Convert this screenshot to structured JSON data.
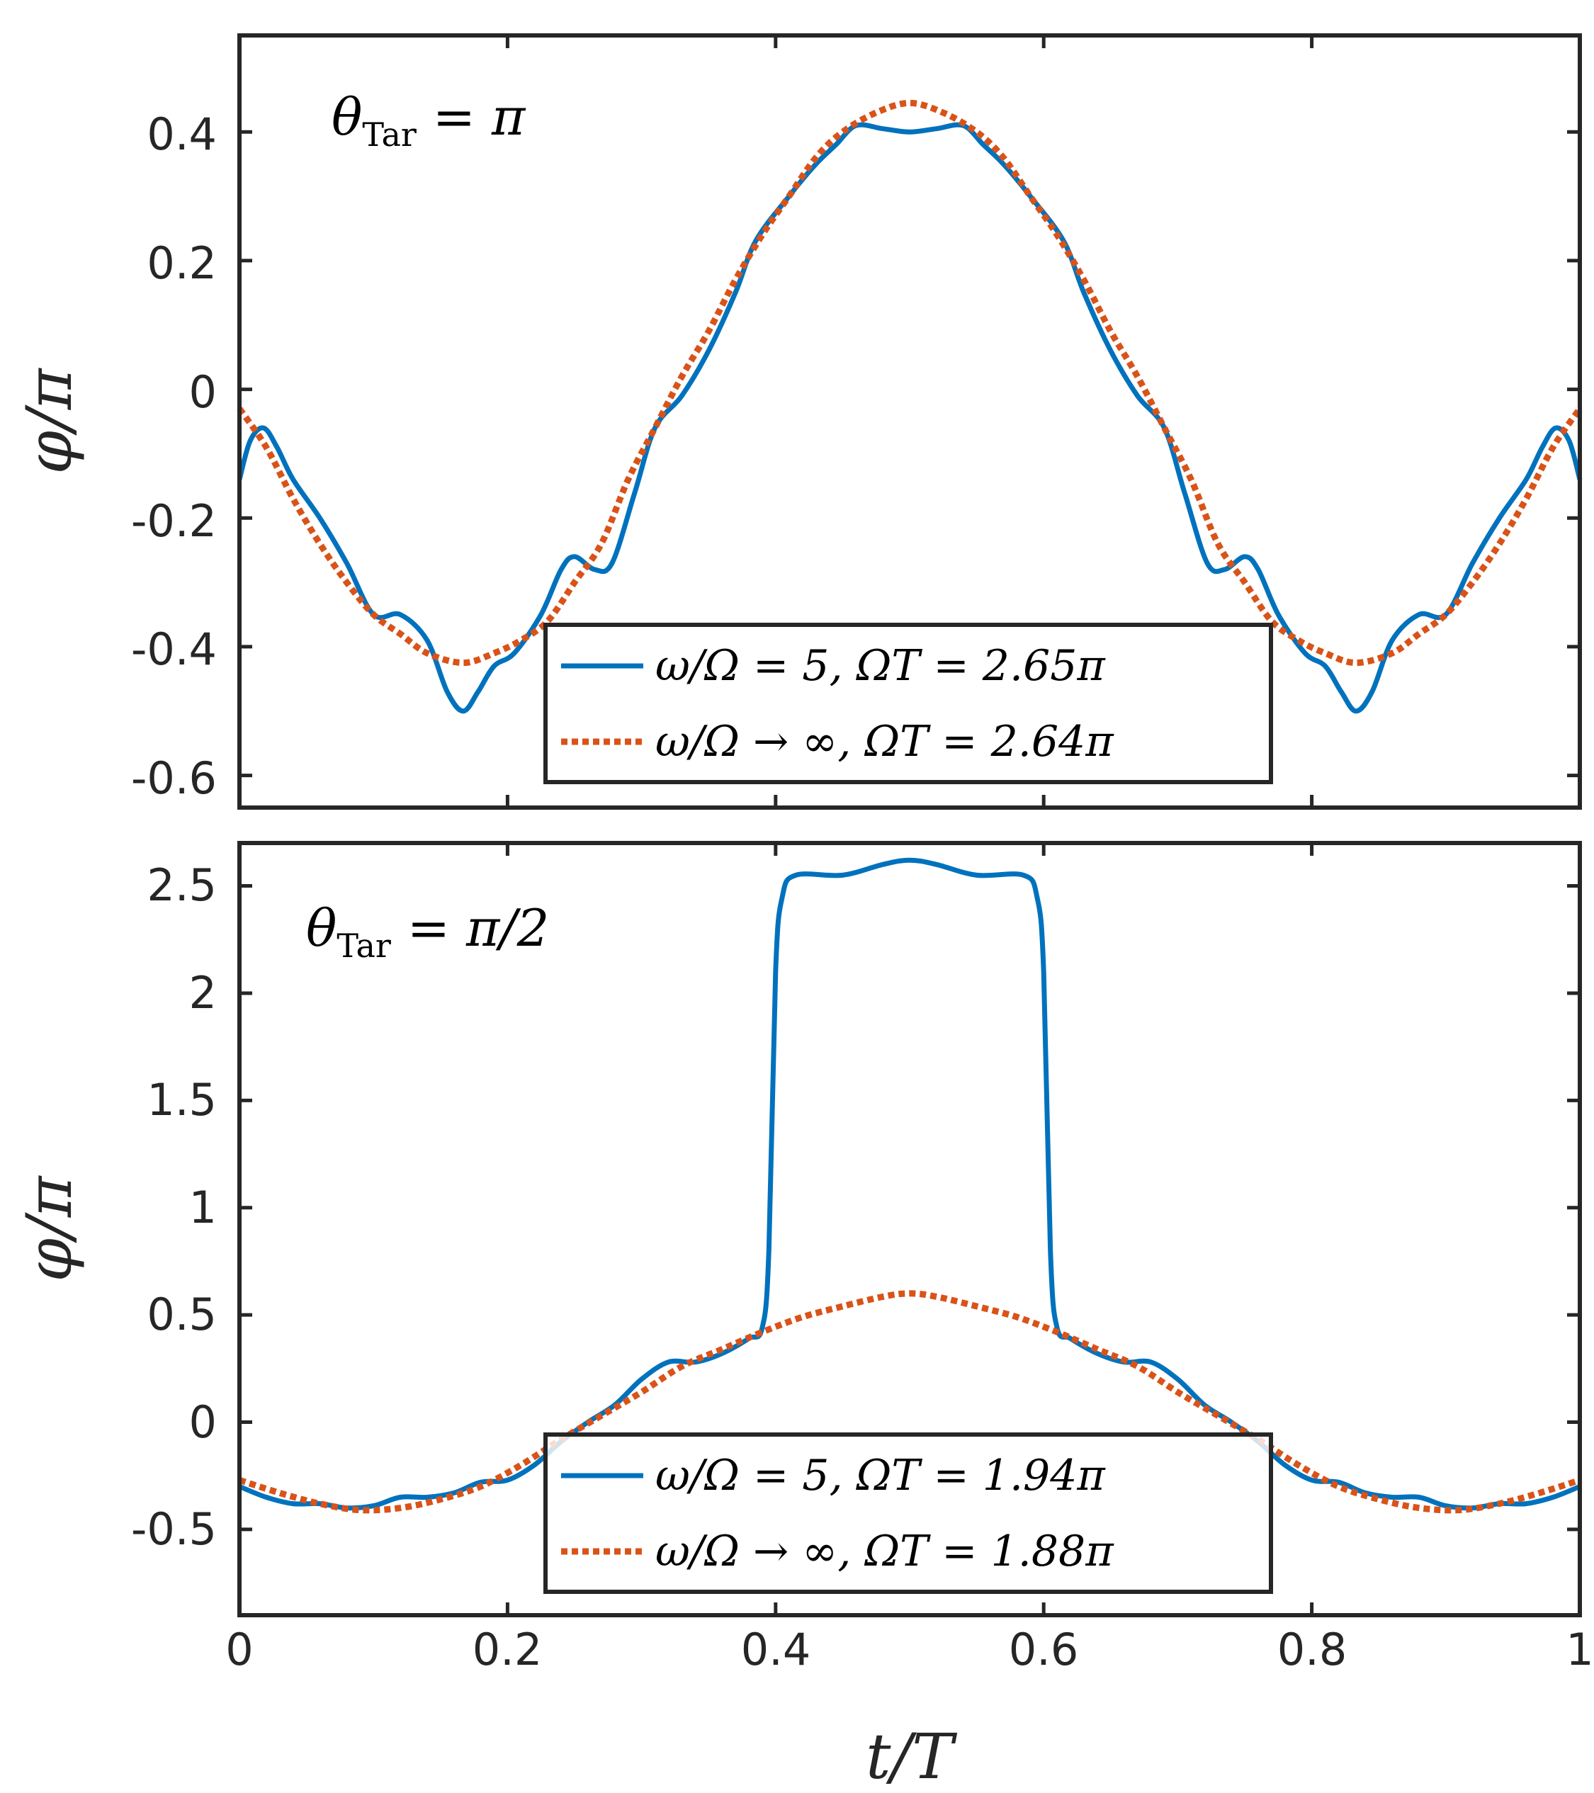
{
  "chart_data": [
    {
      "type": "line",
      "annotation": "θ",
      "annotation_sub": "Tar",
      "annotation_rest": " = π",
      "ylabel": "φ/π",
      "xlabel": "",
      "xlim": [
        0,
        1
      ],
      "ylim": [
        -0.65,
        0.55
      ],
      "yticks": [
        -0.6,
        -0.4,
        -0.2,
        0,
        0.2,
        0.4
      ],
      "ytick_labels": [
        "-0.6",
        "-0.4",
        "-0.2",
        "0",
        "0.2",
        "0.4"
      ],
      "xticks": [
        0,
        0.2,
        0.4,
        0.6,
        0.8,
        1
      ],
      "xtick_labels": [],
      "legend_position": "bottom-center",
      "series": [
        {
          "name": "ω/Ω = 5, ΩT = 2.65π",
          "color": "#0072BD",
          "style": "solid",
          "points": [
            [
              0,
              -0.14
            ],
            [
              0.008,
              -0.08
            ],
            [
              0.018,
              -0.06
            ],
            [
              0.028,
              -0.09
            ],
            [
              0.04,
              -0.14
            ],
            [
              0.06,
              -0.2
            ],
            [
              0.08,
              -0.27
            ],
            [
              0.1,
              -0.35
            ],
            [
              0.12,
              -0.35
            ],
            [
              0.14,
              -0.39
            ],
            [
              0.155,
              -0.47
            ],
            [
              0.167,
              -0.5
            ],
            [
              0.178,
              -0.47
            ],
            [
              0.19,
              -0.43
            ],
            [
              0.205,
              -0.41
            ],
            [
              0.225,
              -0.35
            ],
            [
              0.24,
              -0.28
            ],
            [
              0.25,
              -0.26
            ],
            [
              0.265,
              -0.28
            ],
            [
              0.278,
              -0.27
            ],
            [
              0.295,
              -0.16
            ],
            [
              0.31,
              -0.06
            ],
            [
              0.33,
              -0.01
            ],
            [
              0.35,
              0.06
            ],
            [
              0.37,
              0.15
            ],
            [
              0.385,
              0.23
            ],
            [
              0.41,
              0.3
            ],
            [
              0.43,
              0.35
            ],
            [
              0.445,
              0.38
            ],
            [
              0.46,
              0.41
            ],
            [
              0.48,
              0.405
            ],
            [
              0.5,
              0.4
            ],
            [
              0.52,
              0.405
            ],
            [
              0.54,
              0.41
            ],
            [
              0.555,
              0.38
            ],
            [
              0.57,
              0.35
            ],
            [
              0.59,
              0.3
            ],
            [
              0.615,
              0.23
            ],
            [
              0.63,
              0.15
            ],
            [
              0.65,
              0.06
            ],
            [
              0.67,
              -0.01
            ],
            [
              0.69,
              -0.06
            ],
            [
              0.705,
              -0.16
            ],
            [
              0.722,
              -0.27
            ],
            [
              0.735,
              -0.28
            ],
            [
              0.75,
              -0.26
            ],
            [
              0.76,
              -0.28
            ],
            [
              0.775,
              -0.35
            ],
            [
              0.795,
              -0.41
            ],
            [
              0.81,
              -0.43
            ],
            [
              0.822,
              -0.47
            ],
            [
              0.833,
              -0.5
            ],
            [
              0.845,
              -0.47
            ],
            [
              0.86,
              -0.39
            ],
            [
              0.88,
              -0.35
            ],
            [
              0.9,
              -0.35
            ],
            [
              0.92,
              -0.27
            ],
            [
              0.94,
              -0.2
            ],
            [
              0.96,
              -0.14
            ],
            [
              0.972,
              -0.09
            ],
            [
              0.982,
              -0.06
            ],
            [
              0.992,
              -0.08
            ],
            [
              1,
              -0.14
            ]
          ]
        },
        {
          "name": "ω/Ω → ∞, ΩT = 2.64π",
          "color": "#D95319",
          "style": "dotted",
          "points": [
            [
              0,
              -0.03
            ],
            [
              0.02,
              -0.09
            ],
            [
              0.04,
              -0.17
            ],
            [
              0.06,
              -0.24
            ],
            [
              0.08,
              -0.3
            ],
            [
              0.1,
              -0.35
            ],
            [
              0.12,
              -0.38
            ],
            [
              0.14,
              -0.41
            ],
            [
              0.167,
              -0.425
            ],
            [
              0.19,
              -0.41
            ],
            [
              0.21,
              -0.39
            ],
            [
              0.23,
              -0.36
            ],
            [
              0.25,
              -0.3
            ],
            [
              0.27,
              -0.24
            ],
            [
              0.29,
              -0.14
            ],
            [
              0.31,
              -0.06
            ],
            [
              0.33,
              0.02
            ],
            [
              0.35,
              0.09
            ],
            [
              0.37,
              0.17
            ],
            [
              0.39,
              0.24
            ],
            [
              0.41,
              0.3
            ],
            [
              0.43,
              0.36
            ],
            [
              0.45,
              0.4
            ],
            [
              0.475,
              0.43
            ],
            [
              0.5,
              0.445
            ],
            [
              0.525,
              0.43
            ],
            [
              0.55,
              0.4
            ],
            [
              0.57,
              0.36
            ],
            [
              0.59,
              0.3
            ],
            [
              0.61,
              0.24
            ],
            [
              0.63,
              0.17
            ],
            [
              0.65,
              0.09
            ],
            [
              0.67,
              0.02
            ],
            [
              0.69,
              -0.06
            ],
            [
              0.71,
              -0.14
            ],
            [
              0.73,
              -0.24
            ],
            [
              0.75,
              -0.3
            ],
            [
              0.77,
              -0.36
            ],
            [
              0.79,
              -0.39
            ],
            [
              0.81,
              -0.41
            ],
            [
              0.833,
              -0.425
            ],
            [
              0.86,
              -0.41
            ],
            [
              0.88,
              -0.38
            ],
            [
              0.9,
              -0.35
            ],
            [
              0.92,
              -0.3
            ],
            [
              0.94,
              -0.24
            ],
            [
              0.96,
              -0.17
            ],
            [
              0.98,
              -0.09
            ],
            [
              1,
              -0.03
            ]
          ]
        }
      ]
    },
    {
      "type": "line",
      "annotation": "θ",
      "annotation_sub": "Tar",
      "annotation_rest": " = π/2",
      "ylabel": "φ/π",
      "xlabel": "t/T",
      "xlim": [
        0,
        1
      ],
      "ylim": [
        -0.9,
        2.7
      ],
      "yticks": [
        -0.5,
        0,
        0.5,
        1,
        1.5,
        2,
        2.5
      ],
      "ytick_labels": [
        "-0.5",
        "0",
        "0.5",
        "1",
        "1.5",
        "2",
        "2.5"
      ],
      "xticks": [
        0,
        0.2,
        0.4,
        0.6,
        0.8,
        1
      ],
      "xtick_labels": [
        "0",
        "0.2",
        "0.4",
        "0.6",
        "0.8",
        "1"
      ],
      "legend_position": "bottom-center",
      "series": [
        {
          "name": "ω/Ω = 5, ΩT = 1.94π",
          "color": "#0072BD",
          "style": "solid",
          "points": [
            [
              0,
              -0.3
            ],
            [
              0.02,
              -0.35
            ],
            [
              0.04,
              -0.38
            ],
            [
              0.06,
              -0.38
            ],
            [
              0.08,
              -0.4
            ],
            [
              0.1,
              -0.39
            ],
            [
              0.12,
              -0.35
            ],
            [
              0.14,
              -0.35
            ],
            [
              0.16,
              -0.33
            ],
            [
              0.18,
              -0.28
            ],
            [
              0.2,
              -0.27
            ],
            [
              0.22,
              -0.2
            ],
            [
              0.24,
              -0.09
            ],
            [
              0.26,
              0.0
            ],
            [
              0.28,
              0.08
            ],
            [
              0.3,
              0.2
            ],
            [
              0.32,
              0.28
            ],
            [
              0.34,
              0.28
            ],
            [
              0.36,
              0.32
            ],
            [
              0.38,
              0.39
            ],
            [
              0.39,
              0.44
            ],
            [
              0.395,
              0.8
            ],
            [
              0.4,
              2.1
            ],
            [
              0.405,
              2.45
            ],
            [
              0.415,
              2.55
            ],
            [
              0.45,
              2.55
            ],
            [
              0.48,
              2.6
            ],
            [
              0.5,
              2.62
            ],
            [
              0.52,
              2.6
            ],
            [
              0.55,
              2.55
            ],
            [
              0.585,
              2.55
            ],
            [
              0.595,
              2.45
            ],
            [
              0.6,
              2.1
            ],
            [
              0.605,
              0.8
            ],
            [
              0.61,
              0.44
            ],
            [
              0.62,
              0.39
            ],
            [
              0.64,
              0.32
            ],
            [
              0.66,
              0.28
            ],
            [
              0.68,
              0.28
            ],
            [
              0.7,
              0.2
            ],
            [
              0.72,
              0.08
            ],
            [
              0.74,
              0.0
            ],
            [
              0.76,
              -0.09
            ],
            [
              0.78,
              -0.2
            ],
            [
              0.8,
              -0.27
            ],
            [
              0.82,
              -0.28
            ],
            [
              0.84,
              -0.33
            ],
            [
              0.86,
              -0.35
            ],
            [
              0.88,
              -0.35
            ],
            [
              0.9,
              -0.39
            ],
            [
              0.92,
              -0.4
            ],
            [
              0.94,
              -0.38
            ],
            [
              0.96,
              -0.38
            ],
            [
              0.98,
              -0.35
            ],
            [
              1,
              -0.3
            ]
          ]
        },
        {
          "name": "ω/Ω → ∞, ΩT = 1.88π",
          "color": "#D95319",
          "style": "dotted",
          "points": [
            [
              0,
              -0.27
            ],
            [
              0.03,
              -0.33
            ],
            [
              0.06,
              -0.38
            ],
            [
              0.09,
              -0.41
            ],
            [
              0.12,
              -0.4
            ],
            [
              0.15,
              -0.36
            ],
            [
              0.18,
              -0.3
            ],
            [
              0.21,
              -0.2
            ],
            [
              0.24,
              -0.08
            ],
            [
              0.27,
              0.03
            ],
            [
              0.3,
              0.14
            ],
            [
              0.33,
              0.26
            ],
            [
              0.36,
              0.34
            ],
            [
              0.39,
              0.42
            ],
            [
              0.42,
              0.49
            ],
            [
              0.45,
              0.54
            ],
            [
              0.48,
              0.585
            ],
            [
              0.5,
              0.6
            ],
            [
              0.52,
              0.585
            ],
            [
              0.55,
              0.54
            ],
            [
              0.58,
              0.49
            ],
            [
              0.61,
              0.42
            ],
            [
              0.64,
              0.34
            ],
            [
              0.67,
              0.26
            ],
            [
              0.7,
              0.14
            ],
            [
              0.73,
              0.03
            ],
            [
              0.76,
              -0.08
            ],
            [
              0.79,
              -0.2
            ],
            [
              0.82,
              -0.3
            ],
            [
              0.85,
              -0.36
            ],
            [
              0.88,
              -0.4
            ],
            [
              0.91,
              -0.41
            ],
            [
              0.94,
              -0.38
            ],
            [
              0.97,
              -0.33
            ],
            [
              1,
              -0.27
            ]
          ]
        }
      ]
    }
  ]
}
